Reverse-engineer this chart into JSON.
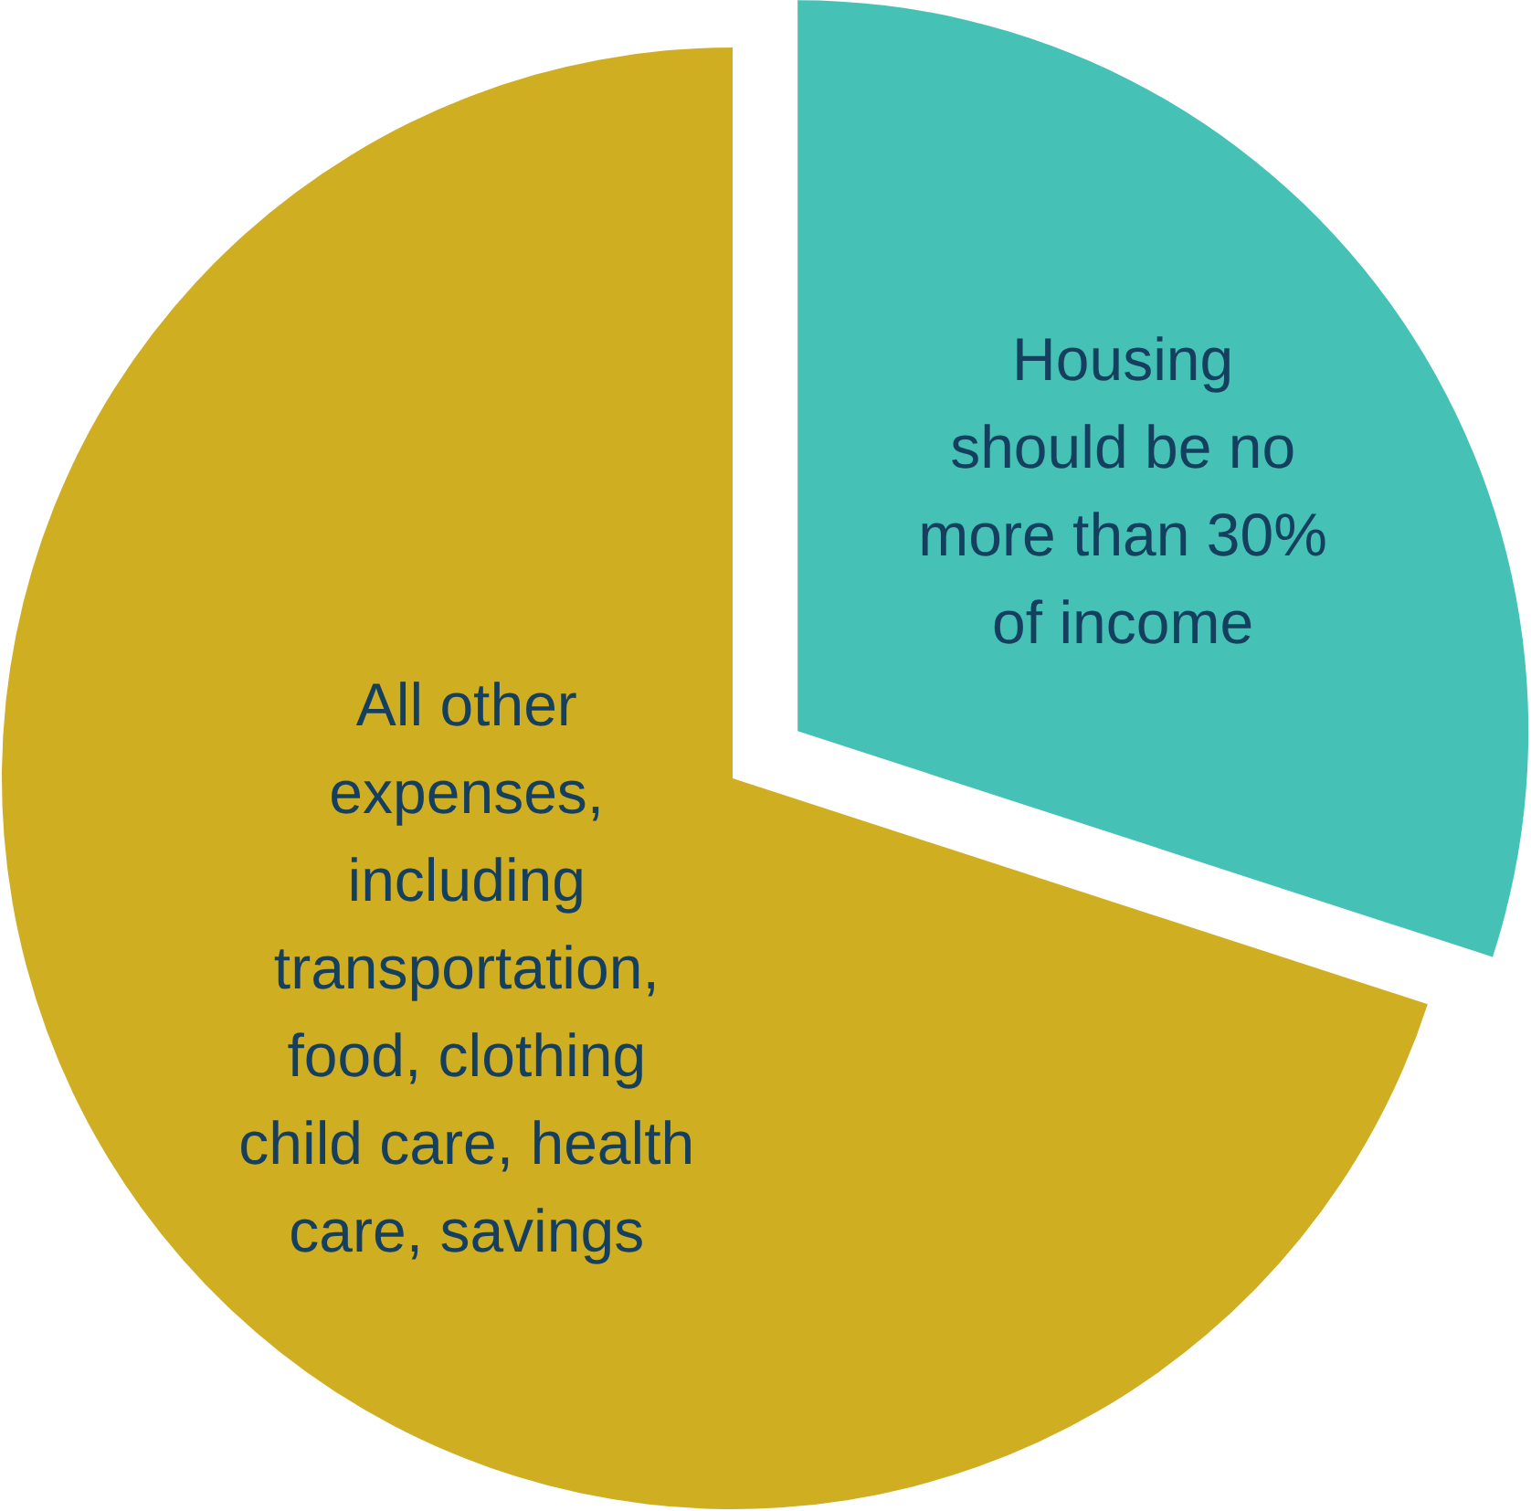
{
  "chart_data": {
    "type": "pie",
    "categories": [
      "Housing\nshould be no\nmore than 30%\nof income",
      "All other\nexpenses,\nincluding\ntransportation,\nfood, clothing\nchild care, health\ncare, savings"
    ],
    "values": [
      30,
      70
    ],
    "colors": [
      "#45c2b5",
      "#d0ae22"
    ]
  }
}
